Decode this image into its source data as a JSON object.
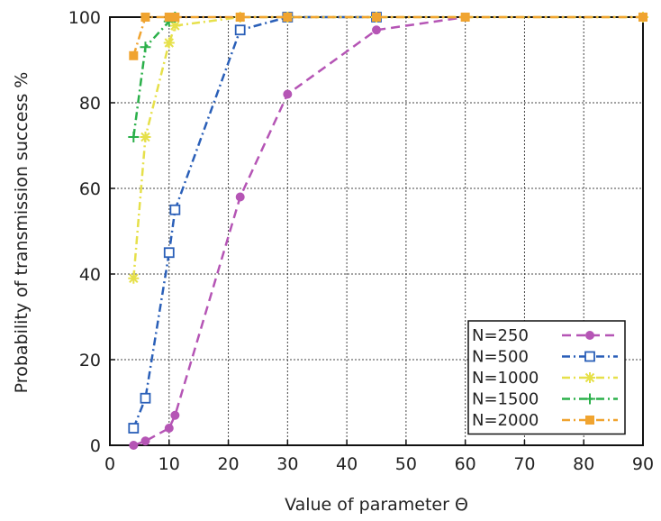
{
  "chart_data": {
    "type": "line",
    "title": "",
    "xlabel": "Value of parameter Θ",
    "ylabel": "Probability of transmission success %",
    "xlim": [
      0,
      90
    ],
    "ylim": [
      0,
      100
    ],
    "x_ticks": [
      0,
      10,
      20,
      30,
      40,
      50,
      60,
      70,
      80,
      90
    ],
    "y_ticks": [
      0,
      20,
      40,
      60,
      80,
      100
    ],
    "grid": true,
    "legend_position": "bottom-right",
    "series": [
      {
        "name": "N=250",
        "color": "#b555b5",
        "marker": "circle",
        "dash": "dashed",
        "points": [
          [
            4,
            0
          ],
          [
            6,
            1
          ],
          [
            10,
            4
          ],
          [
            11,
            7
          ],
          [
            22,
            58
          ],
          [
            30,
            82
          ],
          [
            45,
            97
          ],
          [
            60,
            100
          ]
        ]
      },
      {
        "name": "N=500",
        "color": "#2a5fb8",
        "marker": "square-open",
        "dash": "dash-dot",
        "points": [
          [
            4,
            4
          ],
          [
            6,
            11
          ],
          [
            10,
            45
          ],
          [
            11,
            55
          ],
          [
            22,
            97
          ],
          [
            30,
            100
          ],
          [
            45,
            100
          ]
        ]
      },
      {
        "name": "N=1000",
        "color": "#e6e04a",
        "marker": "star",
        "dash": "dash-dot",
        "points": [
          [
            4,
            39
          ],
          [
            6,
            72
          ],
          [
            10,
            94
          ],
          [
            11,
            98
          ],
          [
            22,
            100
          ],
          [
            30,
            100
          ],
          [
            45,
            100
          ],
          [
            90,
            100
          ]
        ]
      },
      {
        "name": "N=1500",
        "color": "#2bb04a",
        "marker": "plus",
        "dash": "dash-dot",
        "points": [
          [
            4,
            72
          ],
          [
            6,
            93
          ],
          [
            10,
            99
          ],
          [
            11,
            100
          ]
        ]
      },
      {
        "name": "N=2000",
        "color": "#f0a430",
        "marker": "square-filled",
        "dash": "dash-dot",
        "points": [
          [
            4,
            91
          ],
          [
            6,
            100
          ],
          [
            10,
            100
          ],
          [
            11,
            100
          ],
          [
            22,
            100
          ],
          [
            30,
            100
          ],
          [
            45,
            100
          ],
          [
            60,
            100
          ],
          [
            90,
            100
          ]
        ]
      }
    ]
  }
}
